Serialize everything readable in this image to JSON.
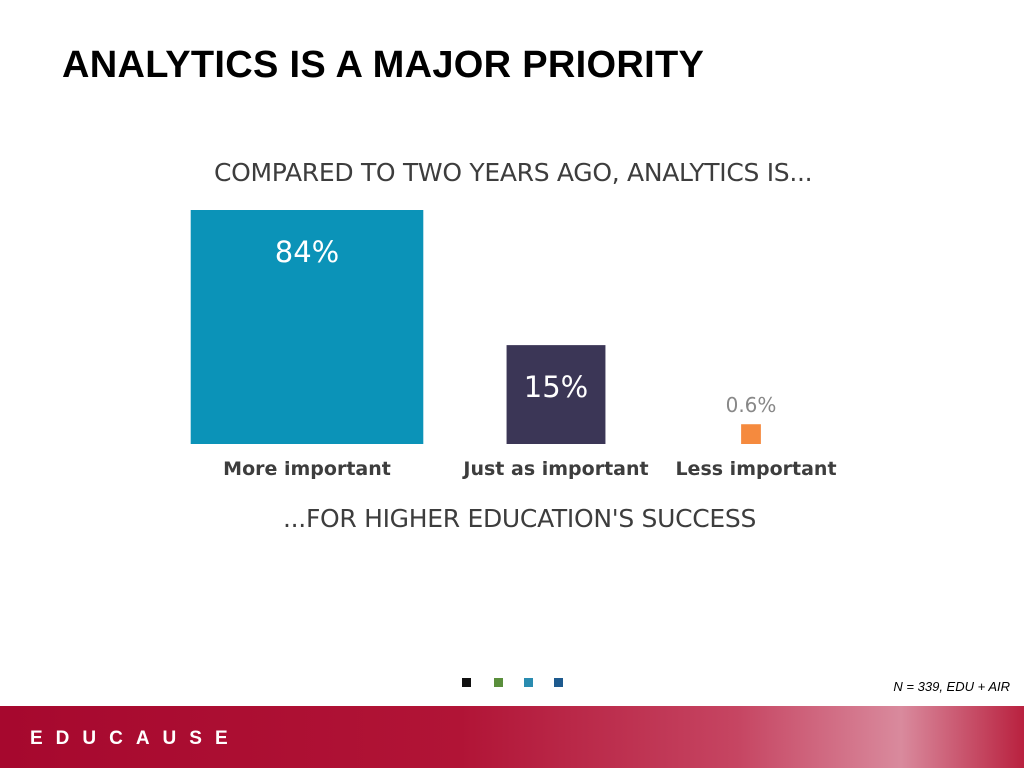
{
  "slide": {
    "title": "ANALYTICS IS A MAJOR PRIORITY",
    "footnote": "N = 339, EDU + AIR",
    "logo_text": "EDUCAUSE",
    "nav_dot_colors": [
      "#111111",
      "#5a8f3c",
      "#2a8cb0",
      "#1e5a8e"
    ]
  },
  "chart_data": {
    "type": "bar",
    "title": "COMPARED TO TWO YEARS AGO, ANALYTICS IS...",
    "caption": "...FOR HIGHER EDUCATION'S SUCCESS",
    "categories": [
      "More important",
      "Just as important",
      "Less important"
    ],
    "values": [
      84,
      15,
      0.6
    ],
    "value_labels": [
      "84%",
      "15%",
      "0.6%"
    ],
    "colors": [
      "#0b93b8",
      "#3b3656",
      "#f58a3e"
    ],
    "unit": "%"
  }
}
